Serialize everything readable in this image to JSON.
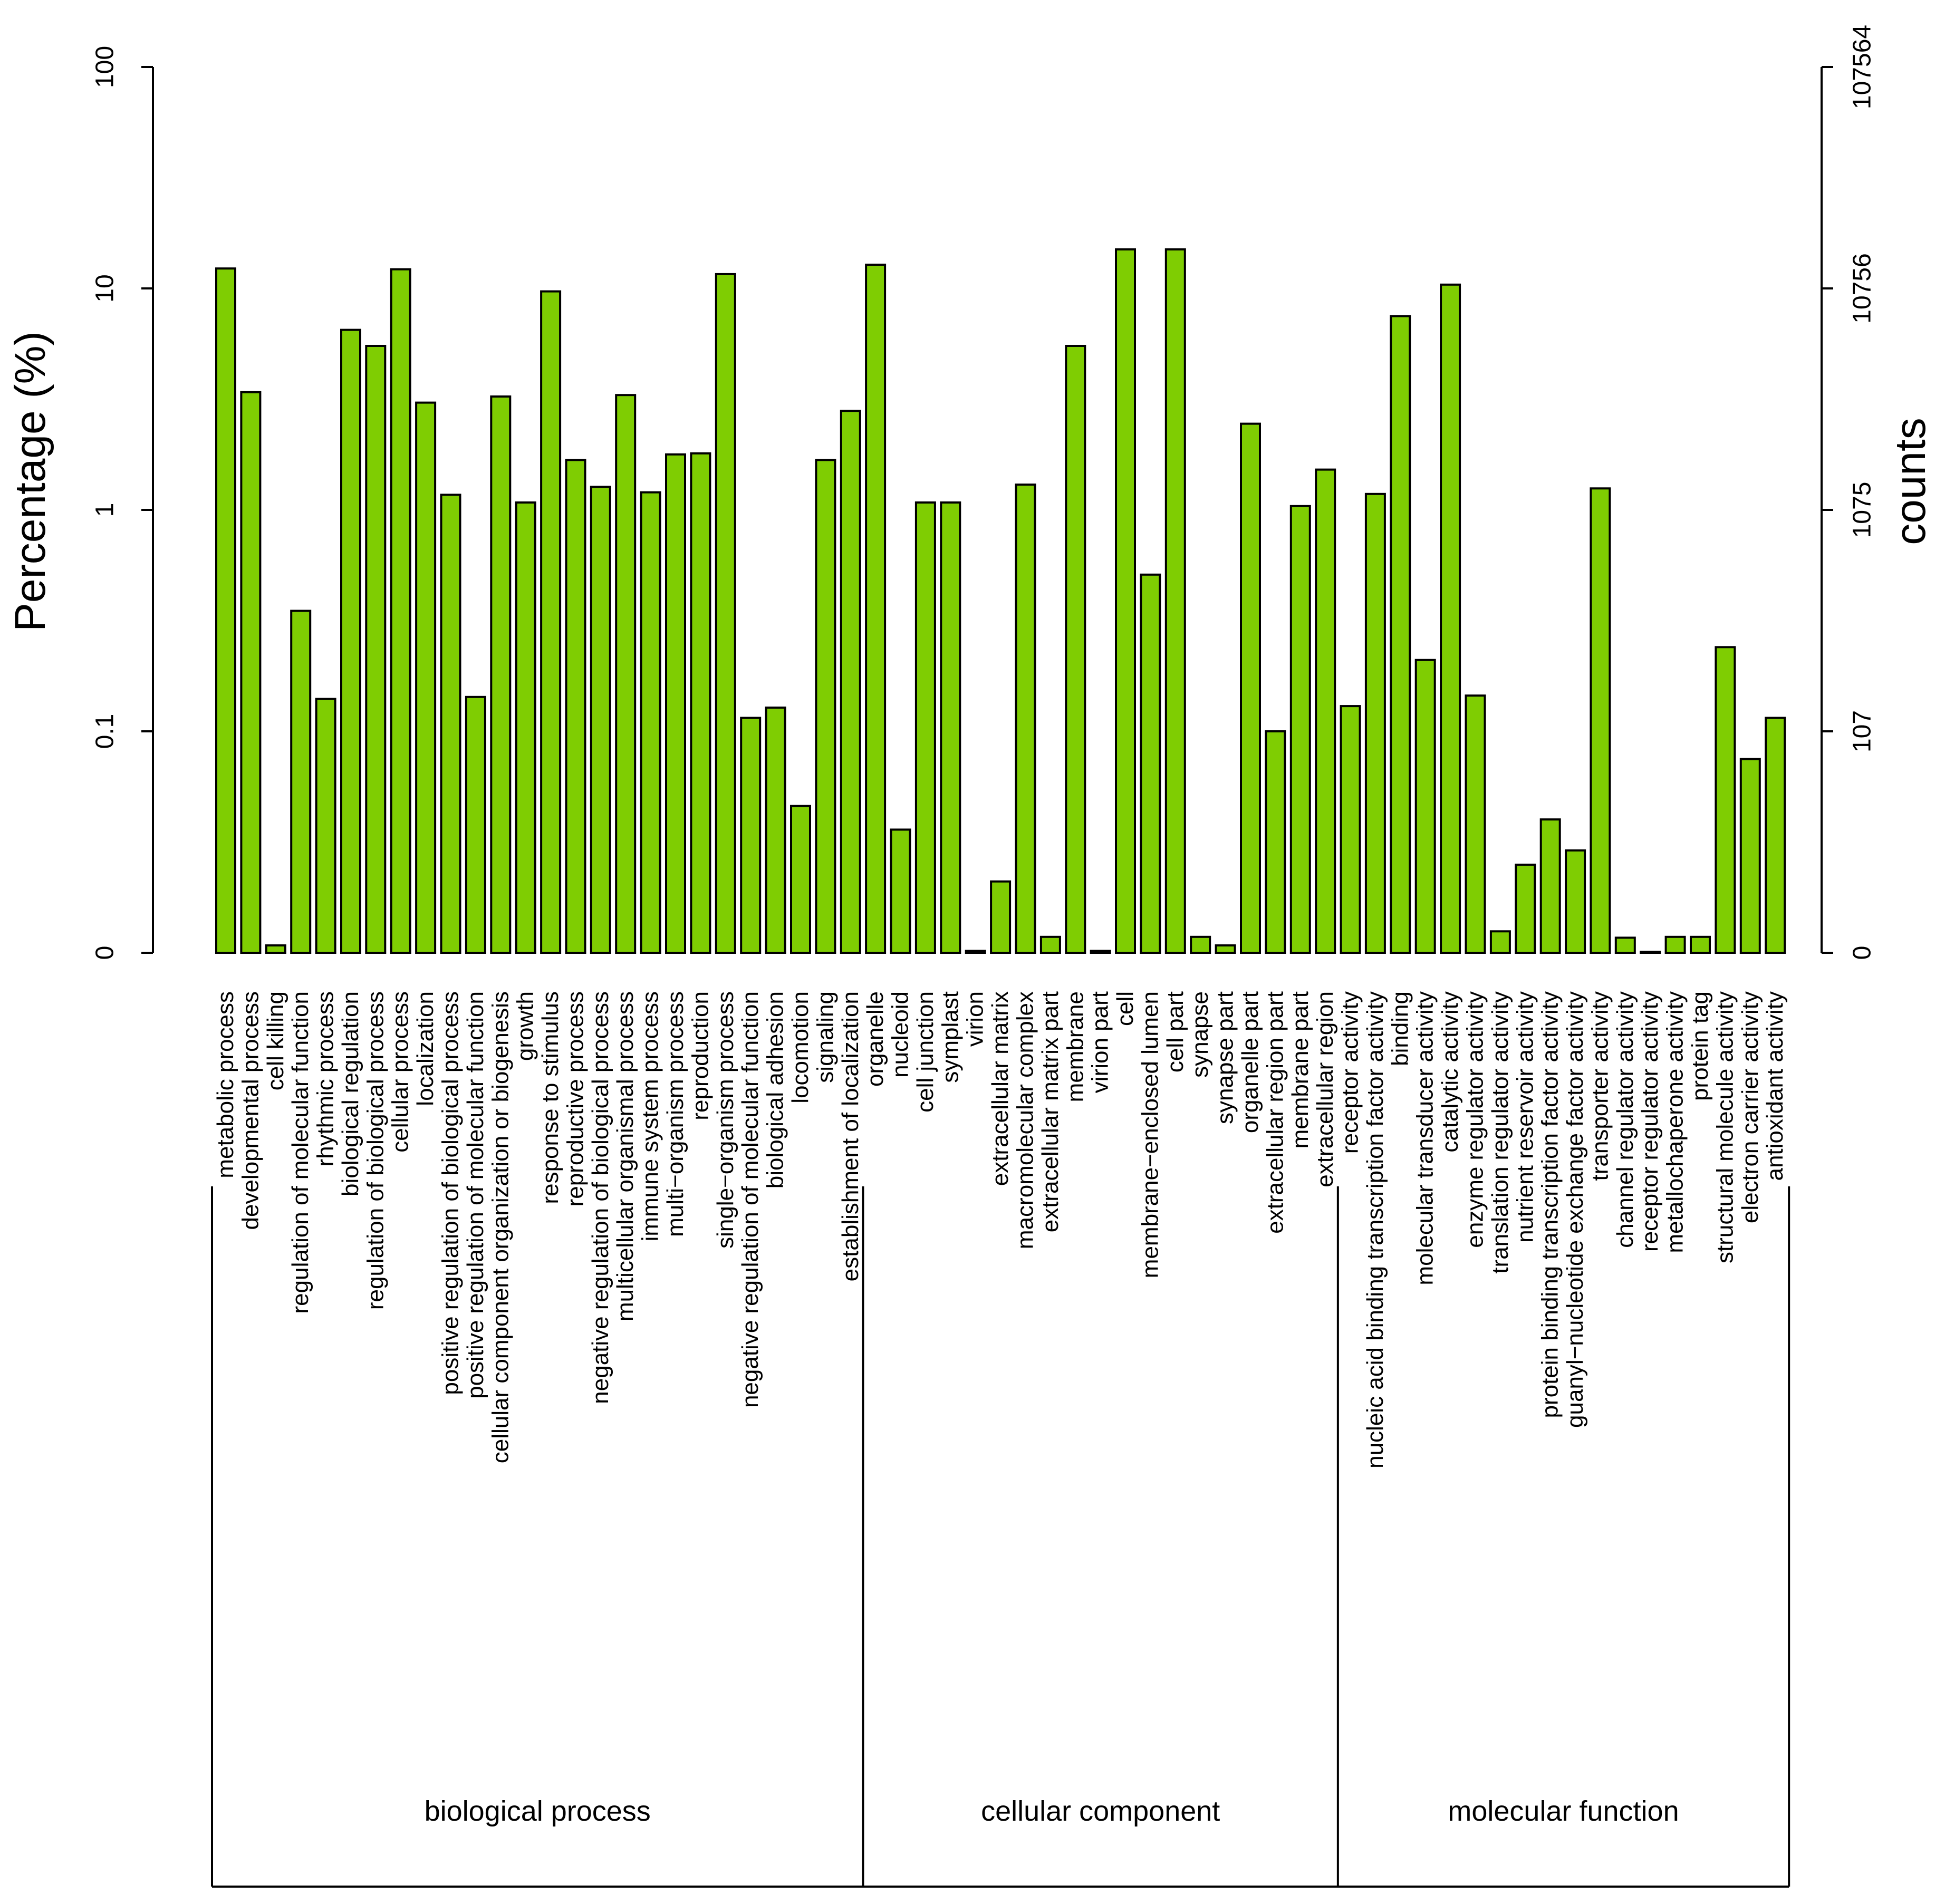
{
  "chart_data": {
    "type": "bar",
    "title": "",
    "xlabel": "",
    "ylabel": "Percentage (%)",
    "y2label": "counts",
    "yscale": "log",
    "ylim": [
      0.01,
      100
    ],
    "y_ticks": [
      {
        "value": 100,
        "label": "100"
      },
      {
        "value": 10,
        "label": "10"
      },
      {
        "value": 1,
        "label": "1"
      },
      {
        "value": 0.1,
        "label": "0.1"
      },
      {
        "value": 0.01,
        "label": "0"
      }
    ],
    "y2_ticks": [
      {
        "value": 100,
        "label": "107564"
      },
      {
        "value": 10,
        "label": "10756"
      },
      {
        "value": 1,
        "label": "1075"
      },
      {
        "value": 0.1,
        "label": "107"
      },
      {
        "value": 0.01,
        "label": "0"
      }
    ],
    "bar_color": "#7fcd02",
    "groups": [
      {
        "name": "biological  process",
        "count": 26
      },
      {
        "name": "cellular  component",
        "count": 19
      },
      {
        "name": "molecular  function",
        "count": 18
      }
    ],
    "categories": [
      "metabolic process",
      "developmental process",
      "cell killing",
      "regulation of molecular function",
      "rhythmic process",
      "biological regulation",
      "regulation of biological process",
      "cellular process",
      "localization",
      "positive regulation of biological process",
      "positive regulation of molecular function",
      "cellular component organization or biogenesis",
      "growth",
      "response to stimulus",
      "reproductive process",
      "negative regulation of biological process",
      "multicellular organismal process",
      "immune system process",
      "multi−organism process",
      "reproduction",
      "single−organism process",
      "negative regulation of molecular function",
      "biological adhesion",
      "locomotion",
      "signaling",
      "establishment of localization",
      "organelle",
      "nucleoid",
      "cell junction",
      "symplast",
      "virion",
      "extracellular matrix",
      "macromolecular complex",
      "extracellular matrix part",
      "membrane",
      "virion part",
      "cell",
      "membrane−enclosed lumen",
      "cell part",
      "synapse",
      "synapse part",
      "organelle part",
      "extracellular region part",
      "membrane part",
      "extracellular region",
      "receptor activity",
      "nucleic acid binding transcription factor activity",
      "binding",
      "molecular transducer activity",
      "catalytic activity",
      "enzyme regulator activity",
      "translation regulator activity",
      "nutrient reservoir activity",
      "protein binding transcription factor activity",
      "guanyl−nucleotide exchange factor activity",
      "transporter activity",
      "channel regulator activity",
      "receptor regulator activity",
      "metallochaperone activity",
      "protein tag",
      "structural molecule activity",
      "electron carrier activity",
      "antioxidant activity"
    ],
    "values": [
      12.3,
      3.4,
      0.0108,
      0.35,
      0.14,
      6.5,
      5.5,
      12.2,
      3.05,
      1.17,
      0.143,
      3.25,
      1.08,
      9.7,
      1.68,
      1.27,
      3.3,
      1.2,
      1.78,
      1.8,
      11.6,
      0.115,
      0.128,
      0.046,
      1.68,
      2.8,
      12.8,
      0.036,
      1.08,
      1.08,
      0.0102,
      0.021,
      1.3,
      0.0118,
      5.5,
      0.0102,
      15.0,
      0.51,
      15.0,
      0.0118,
      0.0108,
      2.45,
      0.1,
      1.04,
      1.52,
      0.13,
      1.18,
      7.5,
      0.21,
      10.4,
      0.145,
      0.0125,
      0.025,
      0.04,
      0.029,
      1.25,
      0.0117,
      0.0101,
      0.0118,
      0.0118,
      0.24,
      0.075,
      0.115
    ]
  }
}
